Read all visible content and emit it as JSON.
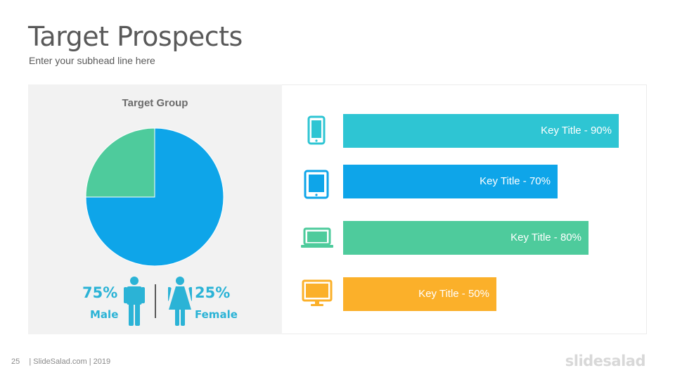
{
  "header": {
    "title": "Target Prospects",
    "subtitle": "Enter your subhead line here"
  },
  "chart_data": [
    {
      "type": "pie",
      "title": "Target Group",
      "categories": [
        "Male",
        "Female"
      ],
      "values": [
        75,
        25
      ],
      "colors": [
        "#0ea5e9",
        "#4ecb9c"
      ],
      "labels": [
        {
          "value_text": "75%",
          "name": "Male",
          "color": "#2bb3d6",
          "icon": "male-person-icon"
        },
        {
          "value_text": "25%",
          "name": "Female",
          "color": "#2bb3d6",
          "icon": "female-person-icon"
        }
      ]
    },
    {
      "type": "bar",
      "orientation": "horizontal",
      "categories": [
        "Key Title",
        "Key Title",
        "Key Title",
        "Key Title"
      ],
      "values": [
        90,
        70,
        80,
        50
      ],
      "value_labels": [
        "Key Title - 90%",
        "Key Title - 70%",
        "Key Title - 80%",
        "Key Title - 50%"
      ],
      "colors": [
        "#2ec5d3",
        "#0ea5e9",
        "#4ecb9c",
        "#fbb02a"
      ],
      "icons": [
        "smartphone-icon",
        "tablet-icon",
        "laptop-icon",
        "monitor-icon"
      ],
      "xlim": [
        0,
        100
      ]
    }
  ],
  "footer": {
    "page_number": "25",
    "text": "| SlideSalad.com | 2019",
    "brand": "slidesalad"
  }
}
